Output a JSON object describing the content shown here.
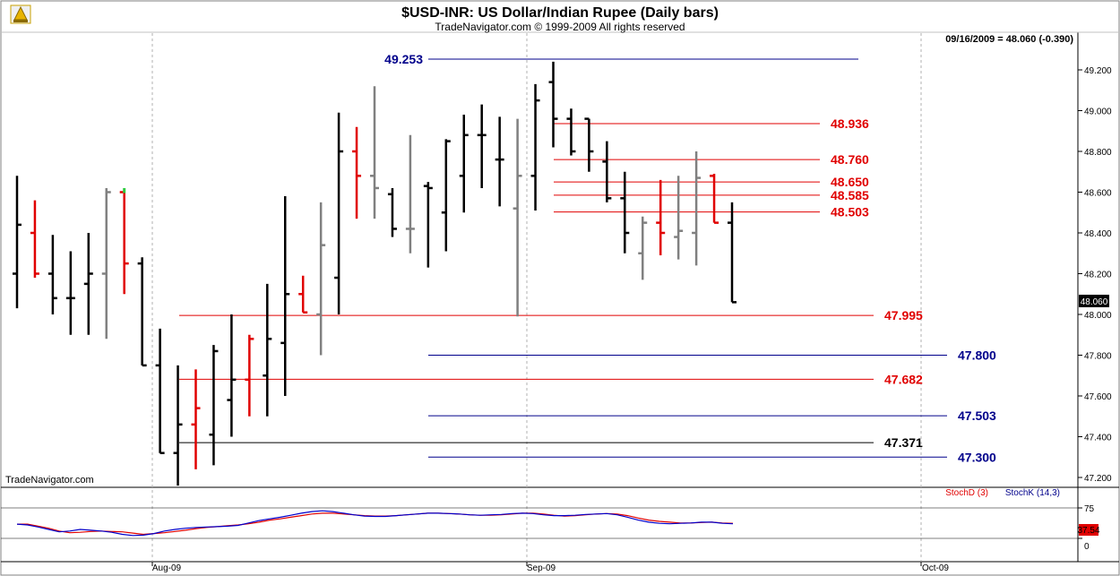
{
  "title": "$USD-INR:  US Dollar/Indian Rupee  (Daily bars)",
  "subtitle": "TradeNavigator.com © 1999-2009 All rights reserved",
  "status": "09/16/2009 = 48.060 (-0.390)",
  "watermark": "TradeNavigator.com",
  "last_price_label": "48.060",
  "colors": {
    "up": "#000000",
    "down": "#e00000",
    "neutral": "#808080",
    "blue_line": "#00008b",
    "red_line": "#e00000",
    "green": "#2ecc40"
  },
  "chart_data": [
    {
      "type": "ohlc",
      "title": "$USD-INR:  US Dollar/Indian Rupee  (Daily bars)",
      "ylim": [
        47.16,
        49.33
      ],
      "y_ticks": [
        "49.200",
        "49.000",
        "48.800",
        "48.600",
        "48.400",
        "48.200",
        "48.000",
        "47.800",
        "47.600",
        "47.400",
        "47.200"
      ],
      "y_tick_values": [
        49.2,
        49.0,
        48.8,
        48.6,
        48.4,
        48.2,
        48.0,
        47.8,
        47.6,
        47.4,
        47.2
      ],
      "x_labels": [
        "Aug-09",
        "Sep-09",
        "Oct-09"
      ],
      "grid": true,
      "bars": [
        {
          "o": 48.2,
          "h": 48.68,
          "l": 48.03,
          "c": 48.44,
          "color": "black"
        },
        {
          "o": 48.4,
          "h": 48.56,
          "l": 48.18,
          "c": 48.2,
          "color": "red"
        },
        {
          "o": 48.2,
          "h": 48.39,
          "l": 48.0,
          "c": 48.08,
          "color": "black"
        },
        {
          "o": 48.08,
          "h": 48.31,
          "l": 47.9,
          "c": 48.08,
          "color": "black"
        },
        {
          "o": 48.15,
          "h": 48.4,
          "l": 47.9,
          "c": 48.2,
          "color": "black"
        },
        {
          "o": 48.2,
          "h": 48.62,
          "l": 47.88,
          "c": 48.6,
          "color": "gray"
        },
        {
          "o": 48.6,
          "h": 48.6,
          "l": 48.1,
          "c": 48.25,
          "color": "red"
        },
        {
          "o": 48.25,
          "h": 48.28,
          "l": 47.75,
          "c": 47.75,
          "color": "black"
        },
        {
          "o": 47.75,
          "h": 47.93,
          "l": 47.32,
          "c": 47.32,
          "color": "black"
        },
        {
          "o": 47.32,
          "h": 47.75,
          "l": 47.16,
          "c": 47.46,
          "color": "black"
        },
        {
          "o": 47.46,
          "h": 47.73,
          "l": 47.24,
          "c": 47.54,
          "color": "red"
        },
        {
          "o": 47.41,
          "h": 47.85,
          "l": 47.26,
          "c": 47.82,
          "color": "black"
        },
        {
          "o": 47.58,
          "h": 48.0,
          "l": 47.4,
          "c": 47.68,
          "color": "black"
        },
        {
          "o": 47.68,
          "h": 47.9,
          "l": 47.5,
          "c": 47.88,
          "color": "red"
        },
        {
          "o": 47.7,
          "h": 48.15,
          "l": 47.5,
          "c": 47.88,
          "color": "black"
        },
        {
          "o": 47.86,
          "h": 48.58,
          "l": 47.6,
          "c": 48.1,
          "color": "black"
        },
        {
          "o": 48.1,
          "h": 48.19,
          "l": 48.01,
          "c": 48.01,
          "color": "red"
        },
        {
          "o": 48.0,
          "h": 48.55,
          "l": 47.8,
          "c": 48.34,
          "color": "gray"
        },
        {
          "o": 48.18,
          "h": 48.99,
          "l": 48.0,
          "c": 48.8,
          "color": "black"
        },
        {
          "o": 48.8,
          "h": 48.92,
          "l": 48.47,
          "c": 48.68,
          "color": "red"
        },
        {
          "o": 48.68,
          "h": 49.12,
          "l": 48.47,
          "c": 48.62,
          "color": "gray"
        },
        {
          "o": 48.59,
          "h": 48.62,
          "l": 48.38,
          "c": 48.42,
          "color": "black"
        },
        {
          "o": 48.42,
          "h": 48.88,
          "l": 48.3,
          "c": 48.42,
          "color": "gray"
        },
        {
          "o": 48.63,
          "h": 48.65,
          "l": 48.23,
          "c": 48.62,
          "color": "black"
        },
        {
          "o": 48.5,
          "h": 48.86,
          "l": 48.31,
          "c": 48.85,
          "color": "black"
        },
        {
          "o": 48.68,
          "h": 48.98,
          "l": 48.5,
          "c": 48.88,
          "color": "black"
        },
        {
          "o": 48.88,
          "h": 49.03,
          "l": 48.62,
          "c": 48.88,
          "color": "black"
        },
        {
          "o": 48.76,
          "h": 48.97,
          "l": 48.53,
          "c": 48.76,
          "color": "black"
        },
        {
          "o": 48.52,
          "h": 48.96,
          "l": 47.99,
          "c": 48.68,
          "color": "gray"
        },
        {
          "o": 48.68,
          "h": 49.13,
          "l": 48.51,
          "c": 49.05,
          "color": "black"
        },
        {
          "o": 49.14,
          "h": 49.24,
          "l": 48.82,
          "c": 48.96,
          "color": "black"
        },
        {
          "o": 48.96,
          "h": 49.01,
          "l": 48.78,
          "c": 48.8,
          "color": "black"
        },
        {
          "o": 48.96,
          "h": 48.96,
          "l": 48.7,
          "c": 48.8,
          "color": "black"
        },
        {
          "o": 48.75,
          "h": 48.85,
          "l": 48.55,
          "c": 48.57,
          "color": "black"
        },
        {
          "o": 48.57,
          "h": 48.7,
          "l": 48.3,
          "c": 48.4,
          "color": "black"
        },
        {
          "o": 48.3,
          "h": 48.48,
          "l": 48.17,
          "c": 48.45,
          "color": "gray"
        },
        {
          "o": 48.45,
          "h": 48.66,
          "l": 48.29,
          "c": 48.4,
          "color": "red"
        },
        {
          "o": 48.38,
          "h": 48.68,
          "l": 48.27,
          "c": 48.41,
          "color": "gray"
        },
        {
          "o": 48.4,
          "h": 48.8,
          "l": 48.24,
          "c": 48.67,
          "color": "gray"
        },
        {
          "o": 48.68,
          "h": 48.69,
          "l": 48.45,
          "c": 48.45,
          "color": "red"
        },
        {
          "o": 48.45,
          "h": 48.55,
          "l": 48.06,
          "c": 48.06,
          "color": "black"
        }
      ]
    },
    {
      "type": "line",
      "name": "horizontal_levels",
      "levels": [
        {
          "label": "49.253",
          "value": 49.253,
          "color": "blue"
        },
        {
          "label": "48.936",
          "value": 48.936,
          "color": "red"
        },
        {
          "label": "48.760",
          "value": 48.76,
          "color": "red"
        },
        {
          "label": "48.650",
          "value": 48.65,
          "color": "red"
        },
        {
          "label": "48.585",
          "value": 48.585,
          "color": "red"
        },
        {
          "label": "48.503",
          "value": 48.503,
          "color": "red"
        },
        {
          "label": "47.995",
          "value": 47.995,
          "color": "red"
        },
        {
          "label": "47.800",
          "value": 47.8,
          "color": "blue"
        },
        {
          "label": "47.682",
          "value": 47.682,
          "color": "red"
        },
        {
          "label": "47.503",
          "value": 47.503,
          "color": "blue"
        },
        {
          "label": "47.371",
          "value": 47.371,
          "color": "black"
        },
        {
          "label": "47.300",
          "value": 47.3,
          "color": "blue"
        }
      ]
    },
    {
      "type": "line",
      "name_d": "StochD (3)",
      "name_k": "StochK (14,3)",
      "ylim": [
        -5,
        100
      ],
      "y_ticks": [
        "75",
        "0"
      ],
      "y_tick_values": [
        75,
        0
      ],
      "last_value_label": "37.54",
      "stoch_d": [
        35,
        35,
        30,
        25,
        18,
        14,
        15,
        17,
        18,
        17,
        16,
        13,
        10,
        12,
        14,
        17,
        20,
        24,
        27,
        29,
        31,
        33,
        36,
        40,
        45,
        48,
        52,
        56,
        60,
        62,
        62,
        60,
        58,
        56,
        55,
        55,
        56,
        58,
        60,
        62,
        62,
        61,
        60,
        58,
        57,
        57,
        58,
        60,
        62,
        62,
        60,
        57,
        55,
        56,
        58,
        60,
        61,
        60,
        56,
        50,
        45,
        42,
        40,
        38,
        38,
        39,
        40,
        38,
        37
      ],
      "stoch_k": [
        35,
        33,
        28,
        22,
        16,
        18,
        22,
        20,
        18,
        15,
        10,
        7,
        8,
        12,
        18,
        22,
        25,
        27,
        28,
        29,
        30,
        32,
        38,
        44,
        48,
        52,
        57,
        62,
        66,
        68,
        66,
        62,
        58,
        55,
        54,
        54,
        56,
        58,
        60,
        62,
        62,
        61,
        60,
        58,
        57,
        58,
        59,
        61,
        62,
        61,
        58,
        56,
        56,
        57,
        59,
        60,
        61,
        58,
        52,
        45,
        40,
        37,
        36,
        37,
        38,
        40,
        40,
        37,
        36
      ]
    }
  ]
}
